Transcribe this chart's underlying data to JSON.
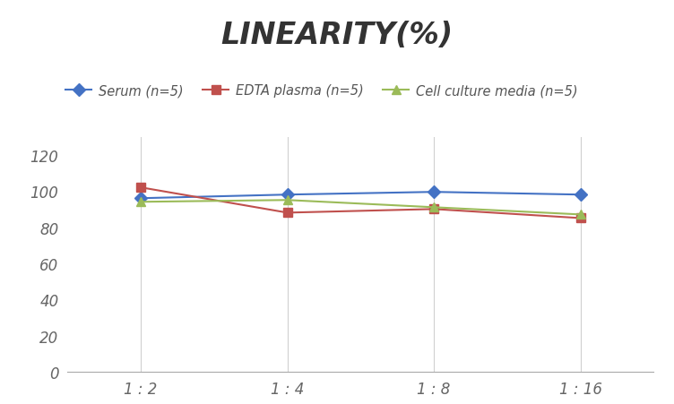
{
  "title": "LINEARITY(%)",
  "x_labels": [
    "1 : 2",
    "1 : 4",
    "1 : 8",
    "1 : 16"
  ],
  "x_positions": [
    0,
    1,
    2,
    3
  ],
  "series": [
    {
      "label": "Serum (n=5)",
      "values": [
        96,
        98,
        99.5,
        98
      ],
      "color": "#4472C4",
      "marker": "D",
      "markersize": 7,
      "linestyle": "-"
    },
    {
      "label": "EDTA plasma (n=5)",
      "values": [
        102,
        88,
        90,
        85
      ],
      "color": "#C0504D",
      "marker": "s",
      "markersize": 7,
      "linestyle": "-"
    },
    {
      "label": "Cell culture media (n=5)",
      "values": [
        94,
        95,
        91,
        87
      ],
      "color": "#9BBB59",
      "marker": "^",
      "markersize": 7,
      "linestyle": "-"
    }
  ],
  "ylim": [
    0,
    130
  ],
  "yticks": [
    0,
    20,
    40,
    60,
    80,
    100,
    120
  ],
  "ylabel": "",
  "xlabel": "",
  "grid_color": "#D0D0D0",
  "background_color": "#FFFFFF",
  "title_fontsize": 24,
  "title_fontstyle": "italic",
  "title_fontweight": "bold",
  "legend_fontsize": 10.5,
  "tick_fontsize": 12
}
